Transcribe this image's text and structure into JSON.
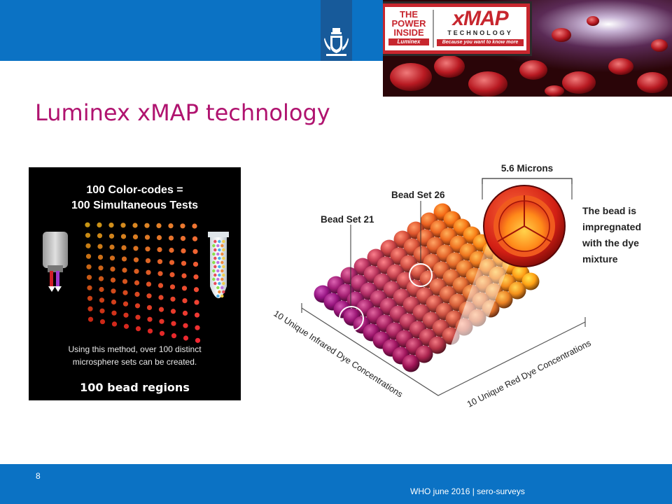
{
  "title": "Luminex xMAP technology",
  "logo": {
    "power_lines": [
      "THE",
      "POWER",
      "INSIDE"
    ],
    "luminex": "Luminex",
    "xmap": "xMAP",
    "technology": "TECHNOLOGY",
    "tagline": "Because you want to know more"
  },
  "left_panel": {
    "heading_lines": [
      "100 Color-codes =",
      "100 Simultaneous Tests"
    ],
    "caption_lines": [
      "Using this method, over 100 distinct",
      "microsphere sets can be created."
    ],
    "overlay_label": "100 bead regions"
  },
  "diagram": {
    "size_label": "5.6 Microns",
    "bead_set_26": "Bead Set 26",
    "bead_set_21": "Bead Set 21",
    "bead_note_lines": [
      "The bead is",
      "impregnated",
      "with the dye",
      "mixture"
    ],
    "axis_left": "10 Unique Infrared Dye Concentrations",
    "axis_right": "10 Unique Red Dye Concentrations"
  },
  "footer": {
    "page_number": "8",
    "text": "WHO june 2016 | sero-surveys"
  },
  "colors": {
    "header_blue": "#0b72c4",
    "title_magenta": "#b0136f",
    "brand_red": "#c7262e"
  },
  "icons": [
    "rijksoverheid-crest-icon"
  ]
}
